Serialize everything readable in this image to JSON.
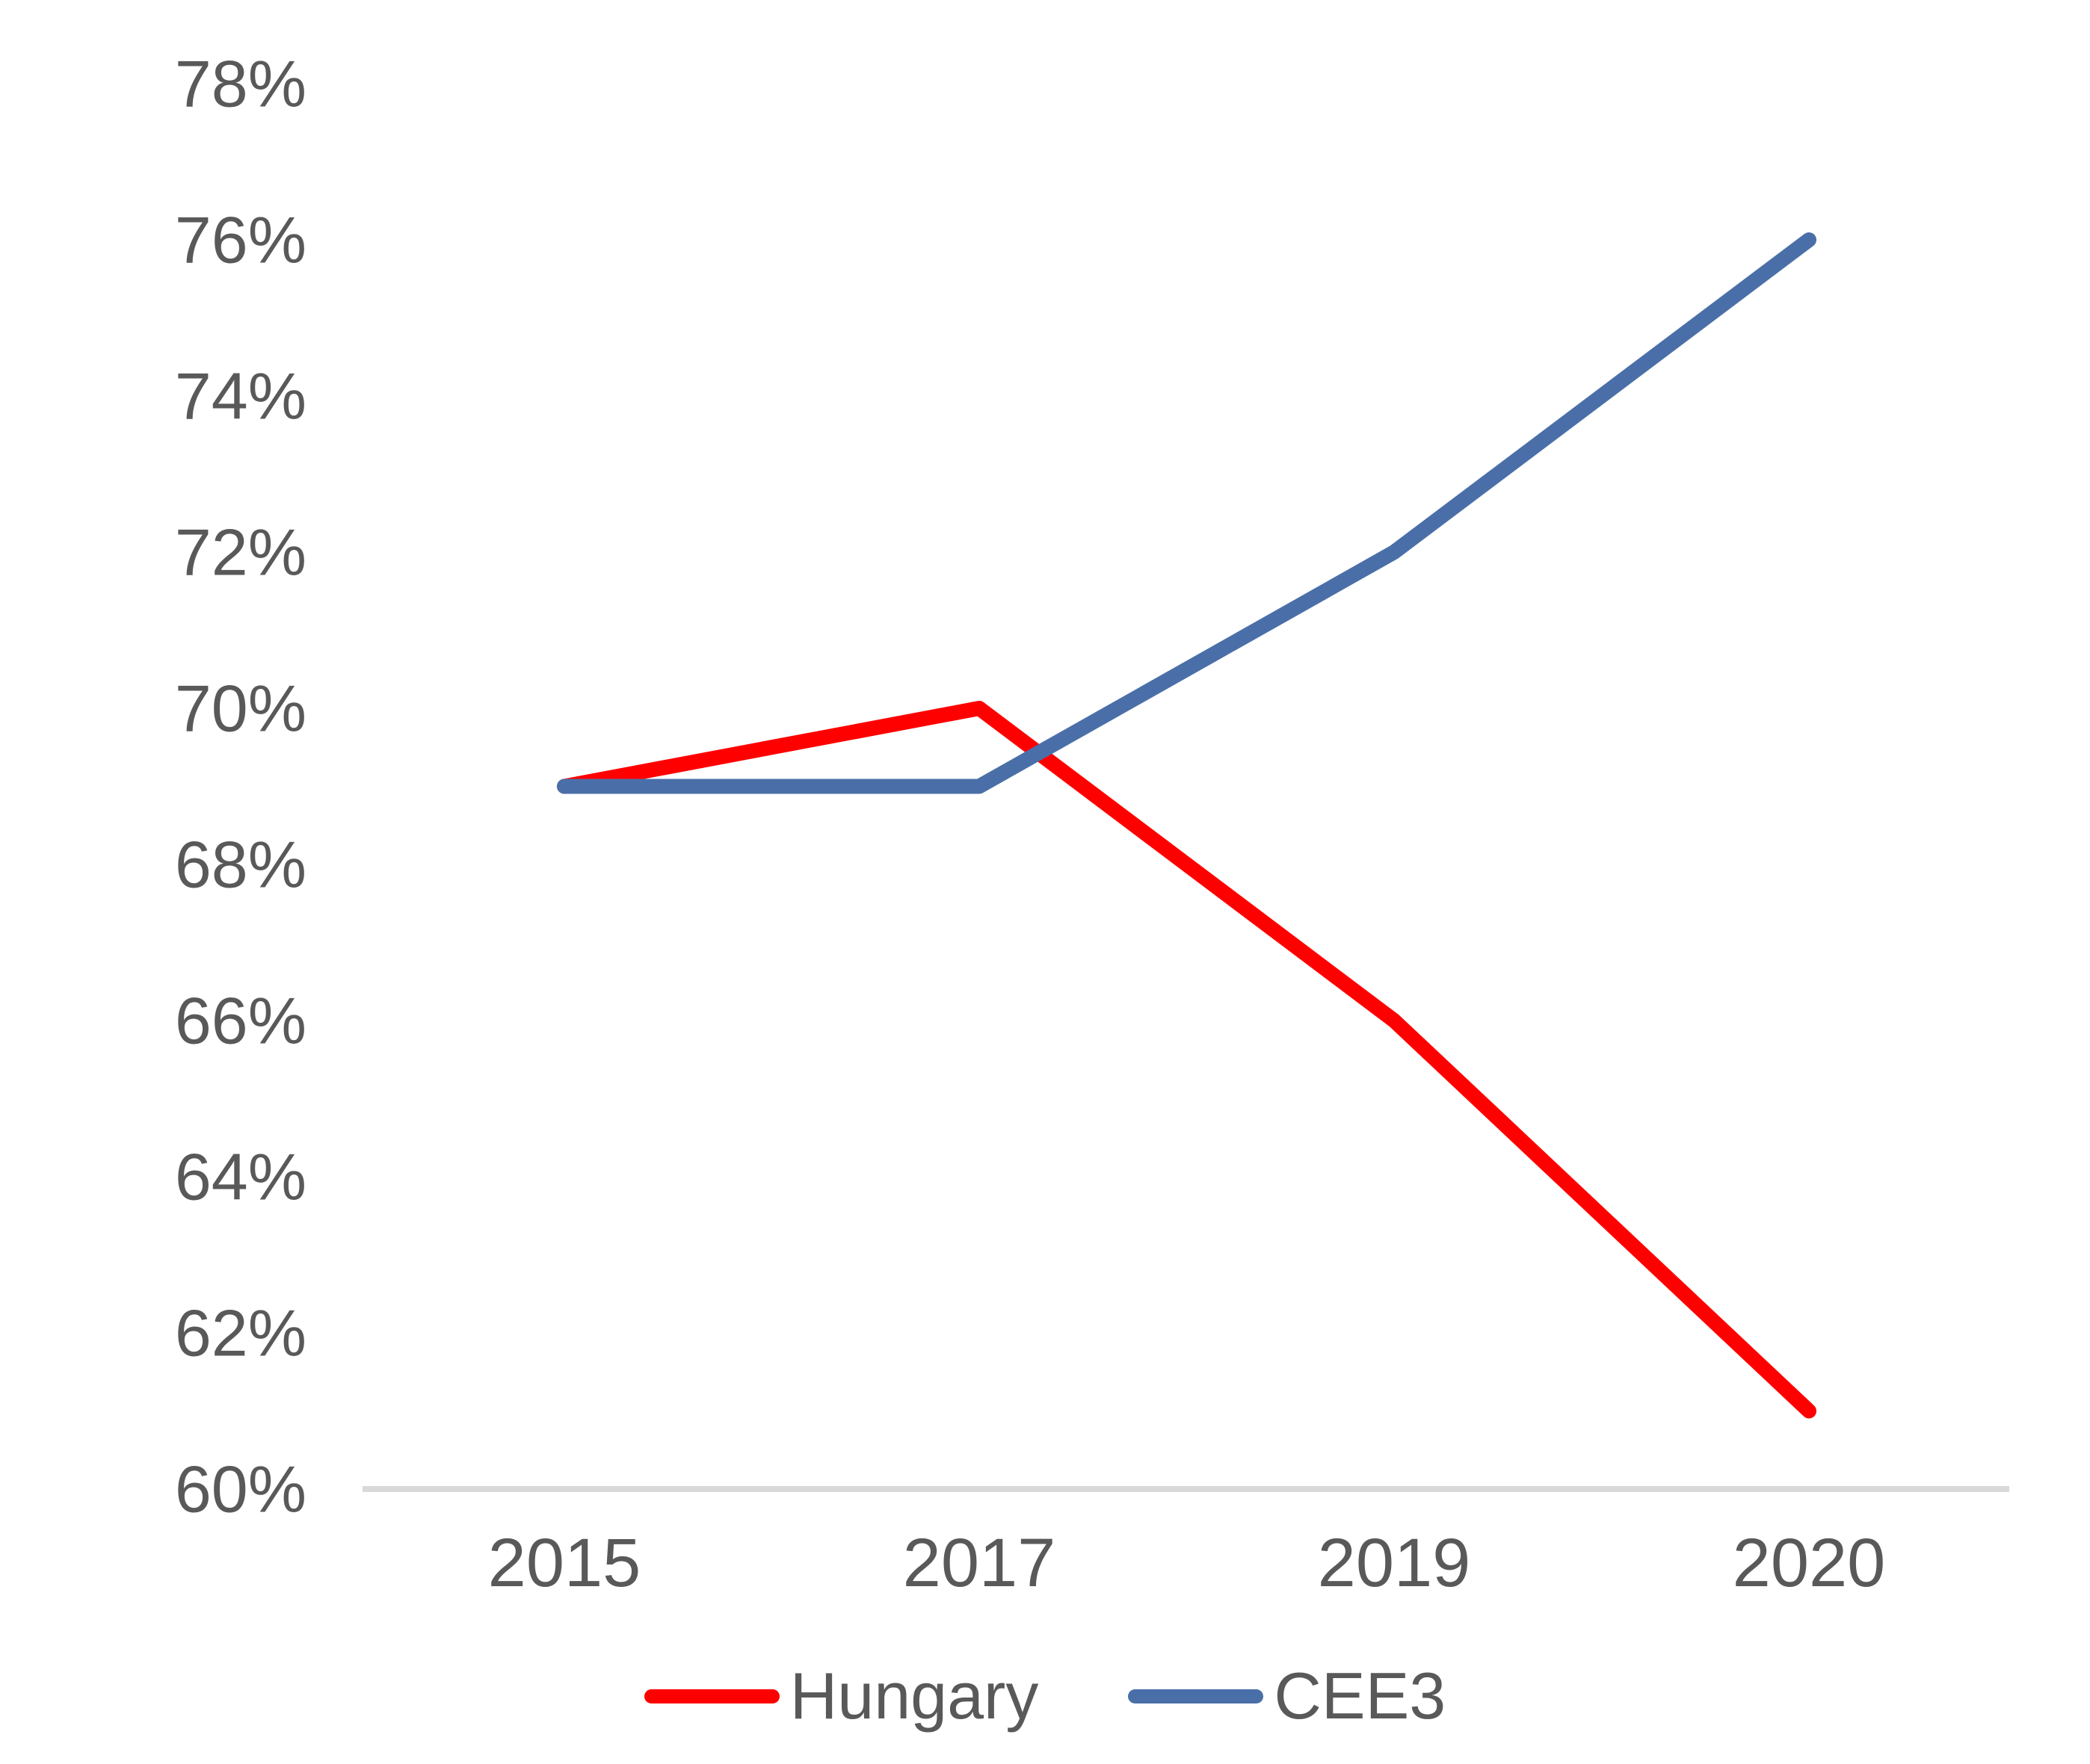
{
  "chart_data": {
    "type": "line",
    "title": "",
    "xlabel": "",
    "ylabel": "",
    "categories": [
      "2015",
      "2017",
      "2019",
      "2020"
    ],
    "series": [
      {
        "name": "Hungary",
        "color": "#FF0000",
        "values": [
          69,
          70,
          66,
          61
        ]
      },
      {
        "name": "CEE3",
        "color": "#4A6FA8",
        "values": [
          69,
          69,
          72,
          76
        ]
      }
    ],
    "ylim": [
      60,
      78
    ],
    "ytick_values": [
      60,
      62,
      64,
      66,
      68,
      70,
      72,
      74,
      76,
      78
    ],
    "ytick_labels": [
      "60%",
      "62%",
      "64%",
      "66%",
      "68%",
      "70%",
      "72%",
      "74%",
      "76%",
      "78%"
    ],
    "value_format": "percent",
    "grid": false,
    "legend_position": "bottom",
    "colors": {
      "axis_line": "#D9D9D9",
      "tick_text": "#595959",
      "background": "#FFFFFF"
    }
  }
}
